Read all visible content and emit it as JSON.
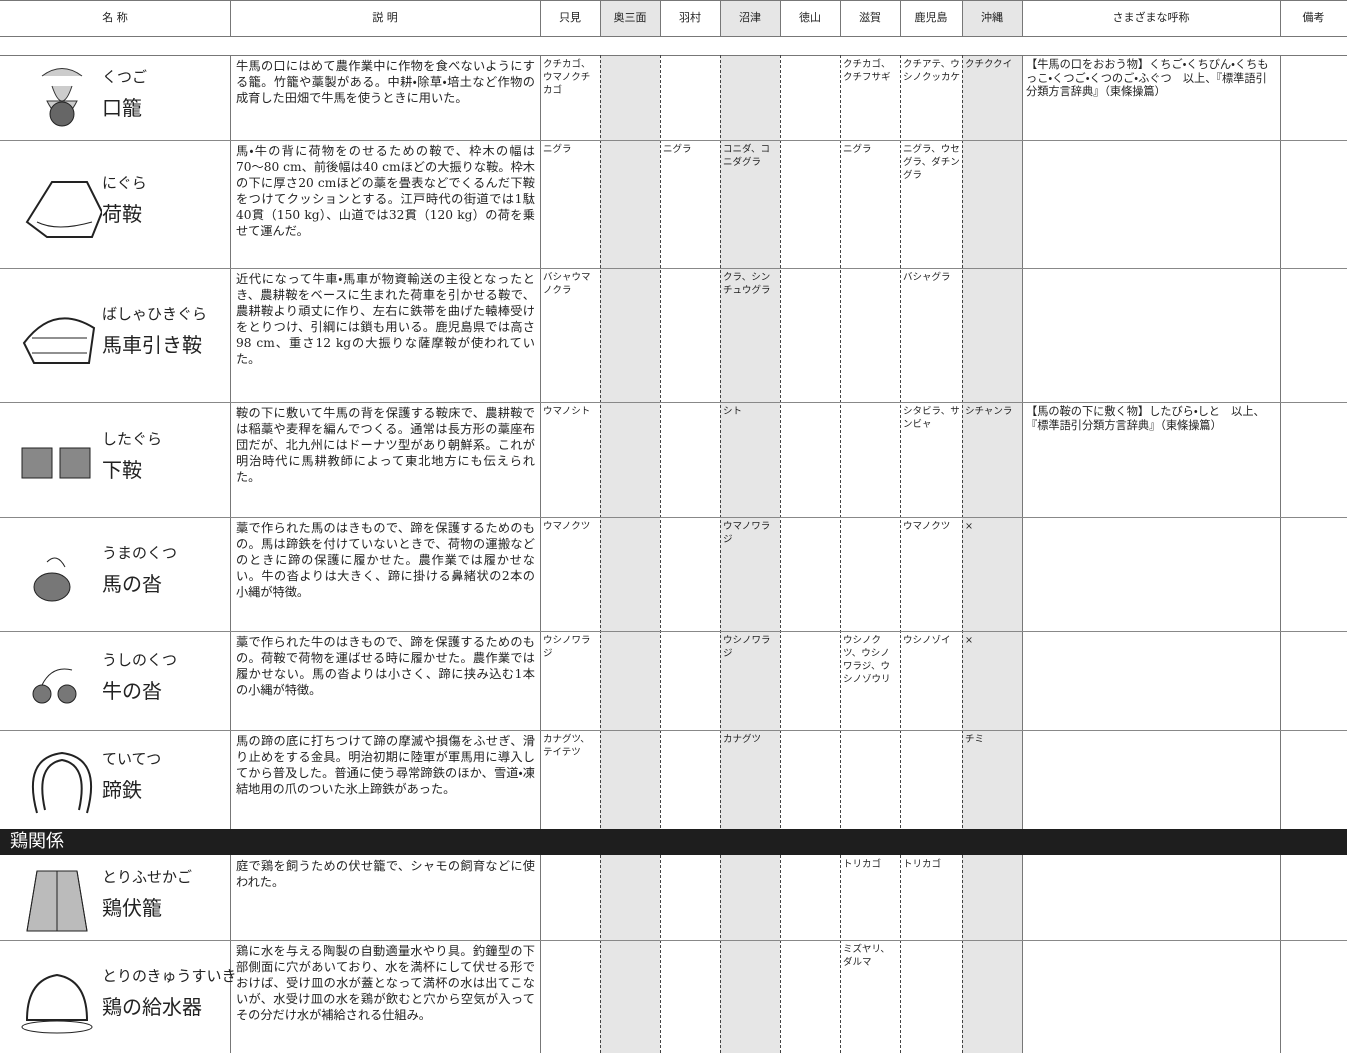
{
  "header": {
    "columns": [
      "名 称",
      "説 明",
      "只見",
      "奥三面",
      "羽村",
      "沼津",
      "徳山",
      "滋賀",
      "鹿児島",
      "沖縄",
      "さまざまな呼称",
      "備考"
    ]
  },
  "groups": [
    {
      "rows": [
        {
          "kana": "くつご",
          "kanji": "口籠",
          "description": "牛馬の口にはめて農作業中に作物を食べないようにする籠。竹籠や藁製がある。中耕・除草・培土など作物の成育した田畑で牛馬を使うときに用いた。",
          "regions": [
            "クチカゴ、ウマノクチカゴ",
            null,
            null,
            null,
            null,
            "クチカゴ、クチフサギ",
            "クチアテ、ウシノクッカケ",
            "クチククイ"
          ],
          "other_names": "【牛馬の口をおおう物】くちご・くちびん・くちもっこ・くつご・くつのご・ふぐつ　以上、『標準語引分類方言辞典』（東條操篇）",
          "note": null
        },
        {
          "kana": "にぐら",
          "kanji": "荷鞍",
          "description": "馬・牛の背に荷物をのせるための鞍で、枠木の幅は70〜80 cm、前後幅は40 cmほどの大振りな鞍。枠木の下に厚さ20 cmほどの藁を畳表などでくるんだ下鞍をつけてクッションとする。江戸時代の街道では1駄40貫（150 kg）、山道では32貫（120 kg）の荷を乗せて運んだ。",
          "regions": [
            "ニグラ",
            null,
            "ニグラ",
            "コニダ、コニダグラ",
            null,
            "ニグラ",
            "ニグラ、ウセグラ、ダチングラ",
            null
          ],
          "other_names": null,
          "note": null
        },
        {
          "kana": "ばしゃひきぐら",
          "kanji": "馬車引き鞍",
          "description": "近代になって牛車・馬車が物資輸送の主役となったとき、農耕鞍をベースに生まれた荷車を引かせる鞍で、農耕鞍より頑丈に作り、左右に鉄帯を曲げた轅棒受けをとりつけ、引綱には鎖も用いる。鹿児島県では高さ98 cm、重さ12 kgの大振りな薩摩鞍が使われていた。",
          "regions": [
            "バシャウマノクラ",
            null,
            null,
            "クラ、シンチュウグラ",
            null,
            null,
            "バシャグラ",
            null
          ],
          "other_names": null,
          "note": null
        },
        {
          "kana": "したぐら",
          "kanji": "下鞍",
          "description": "鞍の下に敷いて牛馬の背を保護する鞍床で、農耕鞍では稲藁や麦稈を編んでつくる。通常は長方形の藁座布団だが、北九州にはドーナツ型があり朝鮮系。これが明治時代に馬耕教師によって東北地方にも伝えられた。",
          "regions": [
            "ウマノシト",
            null,
            null,
            "シト",
            null,
            null,
            "シタビラ、サンビャ",
            "シチャンラ"
          ],
          "other_names": "【馬の鞍の下に敷く物】したびら・しと　以上、『標準語引分類方言辞典』（東條操篇）",
          "note": null
        },
        {
          "kana": "うまのくつ",
          "kanji": "馬の沓",
          "description": "藁で作られた馬のはきもので、蹄を保護するためのもの。馬は蹄鉄を付けていないときで、荷物の運搬などのときに蹄の保護に履かせた。農作業では履かせない。牛の沓よりは大きく、蹄に掛ける鼻緒状の2本の小縄が特徴。",
          "regions": [
            "ウマノクツ",
            null,
            null,
            "ウマノワラジ",
            null,
            null,
            "ウマノクツ",
            "×"
          ],
          "other_names": null,
          "note": null
        },
        {
          "kana": "うしのくつ",
          "kanji": "牛の沓",
          "description": "藁で作られた牛のはきもので、蹄を保護するためのもの。荷鞍で荷物を運ばせる時に履かせた。農作業では履かせない。馬の沓よりは小さく、蹄に挟み込む1本の小縄が特徴。",
          "regions": [
            "ウシノワラジ",
            null,
            null,
            "ウシノワラジ",
            null,
            "ウシノクツ、ウシノワラジ、ウシノゾウリ",
            "ウシノゾイ",
            "×"
          ],
          "other_names": null,
          "note": null
        },
        {
          "kana": "ていてつ",
          "kanji": "蹄鉄",
          "description": "馬の蹄の底に打ちつけて蹄の摩滅や損傷をふせぎ、滑り止めをする金具。明治初期に陸軍が軍馬用に導入してから普及した。普通に使う尋常蹄鉄のほか、雪道・凍結地用の爪のついた氷上蹄鉄があった。",
          "regions": [
            "カナグツ、テイテツ",
            null,
            null,
            "カナグツ",
            null,
            null,
            null,
            "チミ"
          ],
          "other_names": null,
          "note": null
        }
      ]
    },
    {
      "title": "鶏関係",
      "rows": [
        {
          "kana": "とりふせかご",
          "kanji": "鶏伏籠",
          "description": "庭で鶏を飼うための伏せ籠で、シャモの飼育などに使われた。",
          "regions": [
            null,
            null,
            null,
            null,
            null,
            "トリカゴ",
            "トリカゴ",
            null
          ],
          "other_names": null,
          "note": null
        },
        {
          "kana": "とりのきゅうすいき",
          "kanji": "鶏の給水器",
          "description": "鶏に水を与える陶製の自動適量水やり具。釣鐘型の下部側面に穴があいており、水を満杯にして伏せる形でおけば、受け皿の水が蓋となって満杯の水は出てこないが、水受け皿の水を鶏が飲むと穴から空気が入ってその分だけ水が補給される仕組み。",
          "regions": [
            null,
            null,
            null,
            null,
            null,
            "ミズヤリ、ダルマ",
            null,
            null
          ],
          "other_names": null,
          "note": null
        }
      ]
    }
  ]
}
